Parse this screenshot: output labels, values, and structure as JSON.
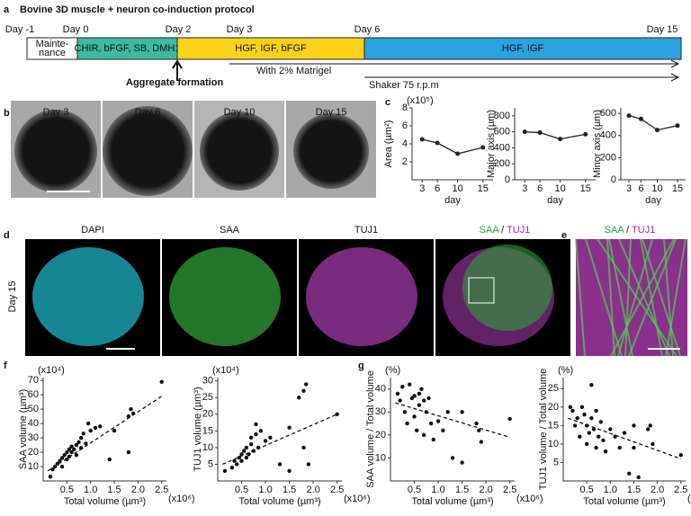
{
  "figure": {
    "panel_labels": [
      "a",
      "b",
      "c",
      "d",
      "e",
      "f",
      "g"
    ],
    "protocol": {
      "title": "Bovine 3D muscle + neuron co-induction protocol",
      "days": [
        "Day -1",
        "Day 0",
        "Day 2",
        "Day 3",
        "Day 6",
        "Day 15"
      ],
      "maintenance": [
        "Mainte-",
        "nance"
      ],
      "stages": [
        "CHIR, bFGF, SB, DMH1",
        "HGF, IGF, bFGF",
        "HGF, IGF"
      ],
      "aggregate": "Aggregate formation",
      "matrigel": "With 2% Matrigel",
      "shaker": "Shaker 75 r.p.m"
    },
    "images_b": [
      "Day 3",
      "Day 6",
      "Day 10",
      "Day 15"
    ],
    "images_d": {
      "row_label": "Day 15",
      "channels": [
        "DAPI",
        "SAA",
        "TUJ1"
      ],
      "merge": [
        "SAA",
        " / ",
        "TUJ1"
      ]
    },
    "image_e": {
      "merge": [
        "SAA",
        " / ",
        "TUJ1"
      ]
    }
  },
  "chart_data": [
    {
      "type": "line",
      "ylabel": "Area (µm²)",
      "y_note": "(x10⁵)",
      "xlabel": "day",
      "x": [
        3,
        6,
        10,
        15
      ],
      "values": [
        4.5,
        4.1,
        2.9,
        3.6
      ],
      "color": "#222",
      "xlim": [
        1,
        17
      ],
      "xticks": [
        3,
        6,
        10,
        15
      ],
      "ylim": [
        0,
        8
      ],
      "yticks": [
        2,
        4,
        6,
        8
      ]
    },
    {
      "type": "line",
      "ylabel": "Major axis (µm)",
      "xlabel": "day",
      "x": [
        3,
        6,
        10,
        15
      ],
      "values": [
        600,
        590,
        510,
        570
      ],
      "color": "#222",
      "xlim": [
        1,
        17
      ],
      "xticks": [
        3,
        6,
        10,
        15
      ],
      "ylim": [
        0,
        900
      ],
      "yticks": [
        0,
        200,
        400,
        600,
        800
      ]
    },
    {
      "type": "line",
      "ylabel": "Minor axis (µm)",
      "xlabel": "day",
      "x": [
        3,
        6,
        10,
        15
      ],
      "values": [
        580,
        550,
        450,
        490
      ],
      "color": "#222",
      "xlim": [
        1,
        17
      ],
      "xticks": [
        3,
        6,
        10,
        15
      ],
      "ylim": [
        0,
        650
      ],
      "yticks": [
        0,
        200,
        400,
        600
      ]
    },
    {
      "type": "scatter",
      "ylabel": "SAA volume (µm³)",
      "y_note": "(x10⁴)",
      "xlabel": "Total volume (µm³)",
      "x_note": "(x10⁶)",
      "color": "#111",
      "x": [
        0.15,
        0.2,
        0.25,
        0.3,
        0.35,
        0.4,
        0.4,
        0.45,
        0.5,
        0.5,
        0.55,
        0.55,
        0.6,
        0.6,
        0.65,
        0.7,
        0.7,
        0.75,
        0.8,
        0.8,
        0.85,
        0.9,
        0.95,
        1.0,
        1.1,
        1.2,
        1.4,
        1.5,
        1.8,
        1.8,
        1.85,
        1.9,
        2.5
      ],
      "values": [
        3,
        8,
        10,
        12,
        14,
        10,
        16,
        18,
        15,
        20,
        22,
        17,
        24,
        20,
        22,
        25,
        18,
        27,
        30,
        23,
        33,
        26,
        40,
        35,
        37,
        38,
        15,
        35,
        20,
        45,
        50,
        47,
        69
      ],
      "trend": {
        "x": [
          0.1,
          2.5
        ],
        "values": [
          7,
          59
        ]
      },
      "xlim": [
        0,
        2.6
      ],
      "xticks": [
        {
          "value": 0.5,
          "label": "0.5"
        },
        {
          "value": 1,
          "label": "1.0"
        },
        {
          "value": 1.5,
          "label": "1.5"
        },
        {
          "value": 2,
          "label": "2.0"
        },
        {
          "value": 2.5,
          "label": "2.5"
        }
      ],
      "ylim": [
        0,
        72
      ],
      "yticks": [
        10,
        20,
        30,
        40,
        50,
        60,
        70
      ]
    },
    {
      "type": "scatter",
      "ylabel": "TUJ1 volume (µm³)",
      "y_note": "(x10⁴)",
      "xlabel": "Total volume (µm³)",
      "x_note": "(x10⁶)",
      "color": "#111",
      "x": [
        0.15,
        0.3,
        0.35,
        0.4,
        0.45,
        0.5,
        0.5,
        0.55,
        0.6,
        0.6,
        0.65,
        0.7,
        0.7,
        0.75,
        0.8,
        0.8,
        0.85,
        0.9,
        1.0,
        1.1,
        1.3,
        1.5,
        1.5,
        1.7,
        1.8,
        1.8,
        1.85,
        1.9,
        2.5
      ],
      "values": [
        3,
        4,
        6,
        5,
        7,
        6,
        8,
        9,
        7,
        10,
        8,
        11,
        13,
        9,
        14,
        17,
        10,
        15,
        12,
        13,
        5,
        16,
        3,
        25,
        27,
        10,
        29,
        5,
        20
      ],
      "trend": {
        "x": [
          0.1,
          2.5
        ],
        "values": [
          5,
          20
        ]
      },
      "xlim": [
        0,
        2.6
      ],
      "xticks": [
        {
          "value": 0.5,
          "label": "0.5"
        },
        {
          "value": 1,
          "label": "1.0"
        },
        {
          "value": 1.5,
          "label": "1.5"
        },
        {
          "value": 2,
          "label": "2.0"
        },
        {
          "value": 2.5,
          "label": "2.5"
        }
      ],
      "ylim": [
        0,
        31
      ],
      "yticks": [
        5,
        10,
        15,
        20,
        25,
        30
      ]
    },
    {
      "type": "scatter",
      "ylabel": "SAA volume / Total volume",
      "y_note": "(%)",
      "xlabel": "Total volume (µm³)",
      "x_note": "(x10⁶)",
      "color": "#111",
      "x": [
        0.15,
        0.2,
        0.25,
        0.3,
        0.35,
        0.4,
        0.45,
        0.5,
        0.5,
        0.55,
        0.6,
        0.6,
        0.65,
        0.7,
        0.7,
        0.75,
        0.8,
        0.85,
        0.9,
        1.0,
        1.1,
        1.2,
        1.3,
        1.5,
        1.5,
        1.8,
        1.85,
        1.9,
        2.5
      ],
      "values": [
        38,
        35,
        41,
        30,
        25,
        42,
        36,
        37,
        28,
        22,
        38,
        33,
        40,
        35,
        20,
        30,
        36,
        25,
        18,
        26,
        22,
        30,
        10,
        30,
        8,
        25,
        22,
        17,
        27
      ],
      "trend": {
        "x": [
          0.1,
          2.5
        ],
        "values": [
          34,
          19
        ]
      },
      "xlim": [
        0,
        2.6
      ],
      "xticks": [
        {
          "value": 0.5,
          "label": "0.5"
        },
        {
          "value": 1,
          "label": "1.0"
        },
        {
          "value": 1.5,
          "label": "1.5"
        },
        {
          "value": 2,
          "label": "2.0"
        },
        {
          "value": 2.5,
          "label": "2.5"
        }
      ],
      "ylim": [
        0,
        45
      ],
      "yticks": [
        10,
        20,
        30,
        40
      ]
    },
    {
      "type": "scatter",
      "ylabel": "TUJ1 volume / Total volume",
      "y_note": "(%)",
      "xlabel": "Total volume (µm³)",
      "x_note": "(x10⁶)",
      "color": "#111",
      "x": [
        0.15,
        0.2,
        0.25,
        0.3,
        0.35,
        0.4,
        0.45,
        0.5,
        0.5,
        0.55,
        0.6,
        0.6,
        0.65,
        0.7,
        0.7,
        0.75,
        0.8,
        0.85,
        0.9,
        1.0,
        1.1,
        1.2,
        1.3,
        1.4,
        1.5,
        1.5,
        1.6,
        1.8,
        1.85,
        1.9,
        2.5
      ],
      "values": [
        20,
        19,
        15,
        17,
        12,
        20,
        18,
        15,
        10,
        13,
        17,
        26,
        14,
        19,
        9,
        12,
        16,
        11,
        8,
        14,
        12,
        9,
        13,
        2,
        9,
        15,
        1,
        14,
        15,
        10,
        7
      ],
      "trend": {
        "x": [
          0.1,
          2.5
        ],
        "values": [
          17,
          6
        ]
      },
      "xlim": [
        0,
        2.6
      ],
      "xticks": [
        {
          "value": 0.5,
          "label": "0.5"
        },
        {
          "value": 1,
          "label": "1.0"
        },
        {
          "value": 1.5,
          "label": "1.5"
        },
        {
          "value": 2,
          "label": "2.0"
        },
        {
          "value": 2.5,
          "label": "2.5"
        }
      ],
      "ylim": [
        0,
        28
      ],
      "yticks": [
        5,
        10,
        15,
        20,
        25
      ]
    }
  ]
}
